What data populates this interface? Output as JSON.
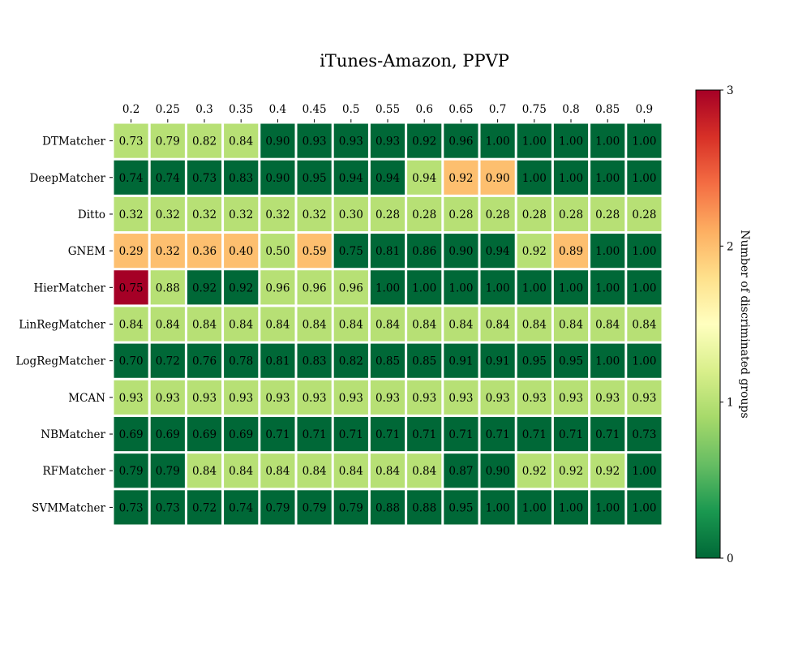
{
  "chart_data": {
    "type": "heatmap",
    "title": "iTunes-Amazon, PPVP",
    "x": [
      "0.2",
      "0.25",
      "0.3",
      "0.35",
      "0.4",
      "0.45",
      "0.5",
      "0.55",
      "0.6",
      "0.65",
      "0.7",
      "0.75",
      "0.8",
      "0.85",
      "0.9"
    ],
    "y": [
      "DTMatcher",
      "DeepMatcher",
      "Ditto",
      "GNEM",
      "HierMatcher",
      "LinRegMatcher",
      "LogRegMatcher",
      "MCAN",
      "NBMatcher",
      "RFMatcher",
      "SVMMatcher"
    ],
    "values": [
      [
        "0.73",
        "0.79",
        "0.82",
        "0.84",
        "0.90",
        "0.93",
        "0.93",
        "0.93",
        "0.92",
        "0.96",
        "1.00",
        "1.00",
        "1.00",
        "1.00",
        "1.00"
      ],
      [
        "0.74",
        "0.74",
        "0.73",
        "0.83",
        "0.90",
        "0.95",
        "0.94",
        "0.94",
        "0.94",
        "0.92",
        "0.90",
        "1.00",
        "1.00",
        "1.00",
        "1.00"
      ],
      [
        "0.32",
        "0.32",
        "0.32",
        "0.32",
        "0.32",
        "0.32",
        "0.30",
        "0.28",
        "0.28",
        "0.28",
        "0.28",
        "0.28",
        "0.28",
        "0.28",
        "0.28"
      ],
      [
        "0.29",
        "0.32",
        "0.36",
        "0.40",
        "0.50",
        "0.59",
        "0.75",
        "0.81",
        "0.86",
        "0.90",
        "0.94",
        "0.92",
        "0.89",
        "1.00",
        "1.00"
      ],
      [
        "0.75",
        "0.88",
        "0.92",
        "0.92",
        "0.96",
        "0.96",
        "0.96",
        "1.00",
        "1.00",
        "1.00",
        "1.00",
        "1.00",
        "1.00",
        "1.00",
        "1.00"
      ],
      [
        "0.84",
        "0.84",
        "0.84",
        "0.84",
        "0.84",
        "0.84",
        "0.84",
        "0.84",
        "0.84",
        "0.84",
        "0.84",
        "0.84",
        "0.84",
        "0.84",
        "0.84"
      ],
      [
        "0.70",
        "0.72",
        "0.76",
        "0.78",
        "0.81",
        "0.83",
        "0.82",
        "0.85",
        "0.85",
        "0.91",
        "0.91",
        "0.95",
        "0.95",
        "1.00",
        "1.00"
      ],
      [
        "0.93",
        "0.93",
        "0.93",
        "0.93",
        "0.93",
        "0.93",
        "0.93",
        "0.93",
        "0.93",
        "0.93",
        "0.93",
        "0.93",
        "0.93",
        "0.93",
        "0.93"
      ],
      [
        "0.69",
        "0.69",
        "0.69",
        "0.69",
        "0.71",
        "0.71",
        "0.71",
        "0.71",
        "0.71",
        "0.71",
        "0.71",
        "0.71",
        "0.71",
        "0.71",
        "0.73"
      ],
      [
        "0.79",
        "0.79",
        "0.84",
        "0.84",
        "0.84",
        "0.84",
        "0.84",
        "0.84",
        "0.84",
        "0.87",
        "0.90",
        "0.92",
        "0.92",
        "0.92",
        "1.00"
      ],
      [
        "0.73",
        "0.73",
        "0.72",
        "0.74",
        "0.79",
        "0.79",
        "0.79",
        "0.88",
        "0.88",
        "0.95",
        "1.00",
        "1.00",
        "1.00",
        "1.00",
        "1.00"
      ]
    ],
    "discriminated_groups": [
      [
        1,
        1,
        1,
        1,
        0,
        0,
        0,
        0,
        0,
        0,
        0,
        0,
        0,
        0,
        0
      ],
      [
        0,
        0,
        0,
        0,
        0,
        0,
        0,
        0,
        1,
        2,
        2,
        0,
        0,
        0,
        0
      ],
      [
        1,
        1,
        1,
        1,
        1,
        1,
        1,
        1,
        1,
        1,
        1,
        1,
        1,
        1,
        1
      ],
      [
        2,
        2,
        2,
        2,
        1,
        2,
        0,
        0,
        0,
        0,
        0,
        1,
        2,
        0,
        0
      ],
      [
        3,
        1,
        0,
        0,
        1,
        1,
        1,
        0,
        0,
        0,
        0,
        0,
        0,
        0,
        0
      ],
      [
        1,
        1,
        1,
        1,
        1,
        1,
        1,
        1,
        1,
        1,
        1,
        1,
        1,
        1,
        1
      ],
      [
        0,
        0,
        0,
        0,
        0,
        0,
        0,
        0,
        0,
        0,
        0,
        0,
        0,
        0,
        0
      ],
      [
        1,
        1,
        1,
        1,
        1,
        1,
        1,
        1,
        1,
        1,
        1,
        1,
        1,
        1,
        1
      ],
      [
        0,
        0,
        0,
        0,
        0,
        0,
        0,
        0,
        0,
        0,
        0,
        0,
        0,
        0,
        0
      ],
      [
        0,
        0,
        1,
        1,
        1,
        1,
        1,
        1,
        1,
        0,
        0,
        1,
        1,
        1,
        0
      ],
      [
        0,
        0,
        0,
        0,
        0,
        0,
        0,
        0,
        0,
        0,
        0,
        0,
        0,
        0,
        0
      ]
    ],
    "colorbar": {
      "label": "Number of discriminated groups",
      "ticks": [
        "0",
        "1",
        "2",
        "3"
      ],
      "range": [
        0,
        3
      ],
      "colormap": "RdYlGn_r",
      "colors": {
        "0": "#006837",
        "1": "#b7e075",
        "2": "#fdbf6f",
        "3": "#a50026"
      }
    }
  }
}
